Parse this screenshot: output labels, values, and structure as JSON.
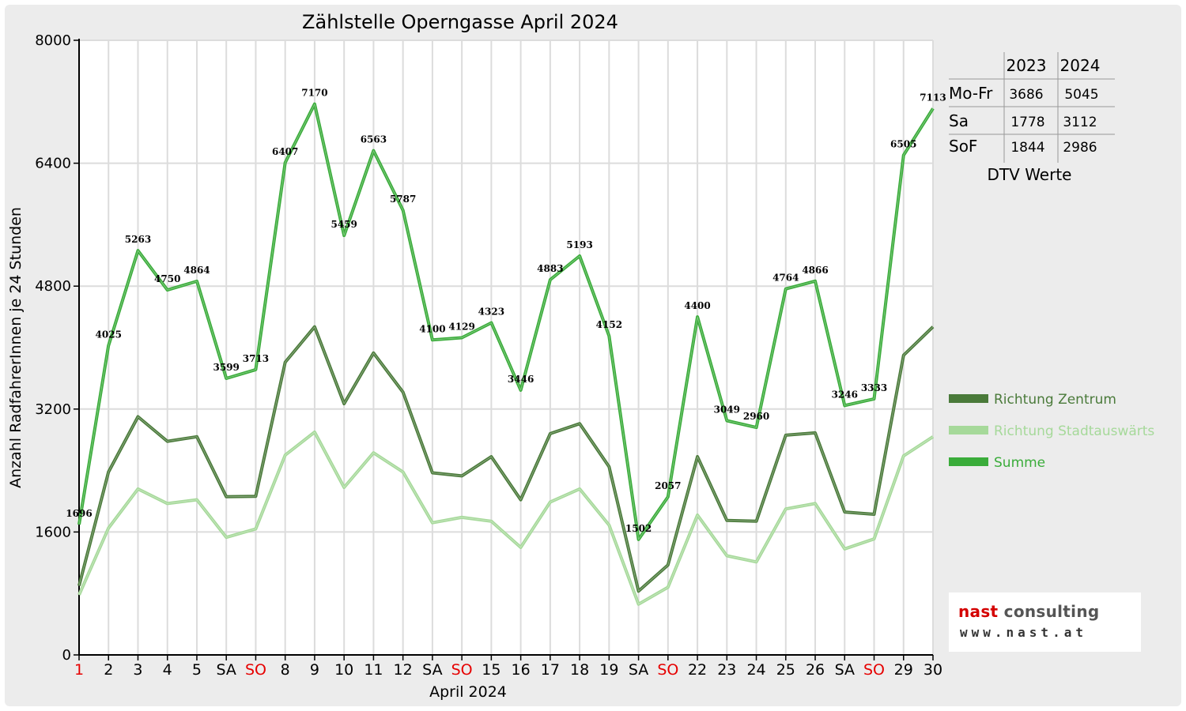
{
  "chart_data": {
    "type": "line",
    "title": "Zählstelle Operngasse April 2024",
    "xlabel": "April 2024",
    "ylabel": "Anzahl RadfahrerInnen je 24 Stunden",
    "ylim": [
      0,
      8000
    ],
    "yticks": [
      "0",
      "1600",
      "3200",
      "4800",
      "6400",
      "8000"
    ],
    "categories": [
      "1",
      "2",
      "3",
      "4",
      "5",
      "SA",
      "SO",
      "8",
      "9",
      "10",
      "11",
      "12",
      "SA",
      "SO",
      "15",
      "16",
      "17",
      "18",
      "19",
      "SA",
      "SO",
      "22",
      "23",
      "24",
      "25",
      "26",
      "SA",
      "SO",
      "29",
      "30"
    ],
    "red_categories": [
      0,
      6,
      13,
      20,
      27
    ],
    "grid": true,
    "legend_position": "right",
    "series": [
      {
        "name": "Richtung Zentrum",
        "color": "#4a7a3a",
        "values": [
          900,
          2380,
          3100,
          2780,
          2840,
          2060,
          2065,
          3810,
          4270,
          3270,
          3930,
          3420,
          2370,
          2330,
          2580,
          2020,
          2880,
          3010,
          2450,
          830,
          1170,
          2580,
          1750,
          1740,
          2860,
          2890,
          1860,
          1830,
          3900,
          4270
        ]
      },
      {
        "name": "Richtung Stadtauswärts",
        "color": "#a6d99a",
        "values": [
          780,
          1650,
          2160,
          1970,
          2020,
          1530,
          1640,
          2600,
          2900,
          2180,
          2630,
          2380,
          1720,
          1790,
          1740,
          1400,
          1990,
          2160,
          1690,
          660,
          880,
          1820,
          1290,
          1210,
          1900,
          1970,
          1380,
          1510,
          2590,
          2840
        ]
      },
      {
        "name": "Summe",
        "color": "#3aac3a",
        "values": [
          1696,
          4025,
          5263,
          4750,
          4864,
          3599,
          3713,
          6407,
          7170,
          5459,
          6563,
          5787,
          4100,
          4129,
          4323,
          3446,
          4883,
          5193,
          4152,
          1502,
          2057,
          4400,
          3049,
          2960,
          4764,
          4866,
          3246,
          3333,
          6505,
          7113
        ]
      }
    ],
    "data_labels": [
      "1696",
      "4025",
      "5263",
      "4750",
      "4864",
      "3599",
      "3713",
      "6407",
      "7170",
      "5459",
      "6563",
      "5787",
      "4100",
      "4129",
      "4323",
      "3446",
      "4883",
      "5193",
      "4152",
      "1502",
      "2057",
      "4400",
      "3049",
      "2960",
      "4764",
      "4866",
      "3246",
      "3333",
      "6505",
      "7113"
    ]
  },
  "dtv_table": {
    "headers": [
      "",
      "2023",
      "2024"
    ],
    "rows": [
      {
        "label": "Mo-Fr",
        "v2023": "3686",
        "v2024": "5045"
      },
      {
        "label": "Sa",
        "v2023": "1778",
        "v2024": "3112"
      },
      {
        "label": "SoF",
        "v2023": "1844",
        "v2024": "2986"
      }
    ],
    "caption": "DTV Werte"
  },
  "logo": {
    "name_part1": "nast",
    "name_part2": " consulting",
    "url": "www.nast.at"
  }
}
